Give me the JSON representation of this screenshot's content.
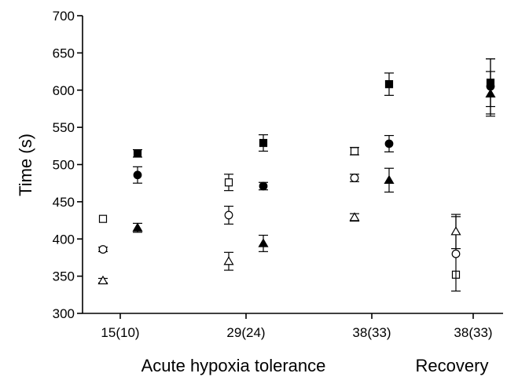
{
  "chart_data": {
    "type": "scatter",
    "title": "",
    "xlabel": "",
    "ylabel": "Time (s)",
    "ylim": [
      300,
      700
    ],
    "yticks": [
      300,
      350,
      400,
      450,
      500,
      550,
      600,
      650,
      700
    ],
    "grid": false,
    "legend": "none",
    "categories": [
      "15(10)",
      "29(24)",
      "38(33)",
      "38(33)"
    ],
    "sections": [
      {
        "label": "Acute hypoxia tolerance",
        "categories": [
          0,
          1,
          2
        ]
      },
      {
        "label": "Recovery",
        "categories": [
          3
        ]
      }
    ],
    "series": [
      {
        "marker": "open-square",
        "offset": "left",
        "points": [
          {
            "category": 0,
            "y": 427,
            "err": 0
          },
          {
            "category": 1,
            "y": 476,
            "err": 11
          },
          {
            "category": 2,
            "y": 518,
            "err": 5
          },
          {
            "category": 3,
            "y": 352,
            "err": 0
          }
        ]
      },
      {
        "marker": "open-circle",
        "offset": "left",
        "points": [
          {
            "category": 0,
            "y": 386,
            "err": 3
          },
          {
            "category": 1,
            "y": 432,
            "err": 12
          },
          {
            "category": 2,
            "y": 482,
            "err": 5
          },
          {
            "category": 3,
            "y": 380,
            "err": 50
          }
        ]
      },
      {
        "marker": "open-triangle",
        "offset": "left",
        "points": [
          {
            "category": 0,
            "y": 344,
            "err": 3
          },
          {
            "category": 1,
            "y": 370,
            "err": 12
          },
          {
            "category": 2,
            "y": 429,
            "err": 5
          },
          {
            "category": 3,
            "y": 410,
            "err": 23
          }
        ]
      },
      {
        "marker": "filled-square",
        "offset": "right",
        "points": [
          {
            "category": 0,
            "y": 515,
            "err": 5
          },
          {
            "category": 1,
            "y": 529,
            "err": 11
          },
          {
            "category": 2,
            "y": 608,
            "err": 15
          },
          {
            "category": 3,
            "y": 610,
            "err": 32
          }
        ]
      },
      {
        "marker": "filled-circle",
        "offset": "right",
        "points": [
          {
            "category": 0,
            "y": 486,
            "err": 11
          },
          {
            "category": 1,
            "y": 471,
            "err": 5
          },
          {
            "category": 2,
            "y": 528,
            "err": 11
          },
          {
            "category": 3,
            "y": 605,
            "err": 37
          }
        ]
      },
      {
        "marker": "filled-triangle",
        "offset": "right",
        "points": [
          {
            "category": 0,
            "y": 415,
            "err": 6
          },
          {
            "category": 1,
            "y": 394,
            "err": 11
          },
          {
            "category": 2,
            "y": 479,
            "err": 16
          },
          {
            "category": 3,
            "y": 595,
            "err": 30
          }
        ]
      }
    ]
  }
}
